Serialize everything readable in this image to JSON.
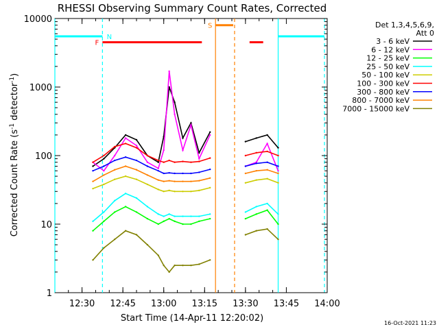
{
  "chart_data": {
    "type": "line",
    "title": "RHESSI Observing Summary Count Rates, Corrected",
    "xlabel": "Start Time (14-Apr-11 12:20:02)",
    "ylabel": "Corrected Count Rate (s⁻¹ detector⁻¹)",
    "ylabel_main": "Corrected Count Rate (s",
    "ylabel_sup1": "-1",
    "ylabel_mid": " detector",
    "ylabel_sup2": "-1",
    "ylabel_end": ")",
    "date_stamp": "16-Oct-2021 11:23",
    "y_scale": "log",
    "xlim": [
      "12:20:02",
      "14:00:00"
    ],
    "ylim": [
      1,
      10000
    ],
    "x_ticks": [
      "12:30",
      "12:45",
      "13:00",
      "13:15",
      "13:30",
      "13:45",
      "14:00"
    ],
    "y_ticks": [
      "1",
      "10",
      "100",
      "1000",
      "10000"
    ],
    "legend_header": [
      "Det 1,3,4,5,6,9,",
      "Att 0"
    ],
    "legend_position": "right",
    "grid": false,
    "series": [
      {
        "name": "3 - 6 keV",
        "color": "#000000",
        "x": [
          "12:34",
          "12:38",
          "12:42",
          "12:46",
          "12:50",
          "12:54",
          "12:58",
          "13:00",
          "13:02",
          "13:04",
          "13:07",
          "13:10",
          "13:13",
          "13:17",
          "13:30",
          "13:34",
          "13:38",
          "13:42"
        ],
        "values": [
          70,
          90,
          130,
          200,
          170,
          100,
          80,
          190,
          1000,
          600,
          180,
          300,
          110,
          220,
          160,
          180,
          200,
          130
        ]
      },
      {
        "name": "6 - 12 keV",
        "color": "#ff00ff",
        "x": [
          "12:34",
          "12:38",
          "12:42",
          "12:46",
          "12:50",
          "12:54",
          "12:58",
          "13:00",
          "13:02",
          "13:04",
          "13:07",
          "13:10",
          "13:13",
          "13:17",
          "13:30",
          "13:34",
          "13:38",
          "13:42"
        ],
        "values": [
          80,
          60,
          100,
          180,
          140,
          80,
          65,
          120,
          1700,
          400,
          120,
          280,
          90,
          200,
          70,
          80,
          150,
          60
        ]
      },
      {
        "name": "12 - 25 keV",
        "color": "#00ff00",
        "x": [
          "12:34",
          "12:38",
          "12:42",
          "12:46",
          "12:50",
          "12:54",
          "12:58",
          "13:00",
          "13:02",
          "13:04",
          "13:07",
          "13:10",
          "13:13",
          "13:17",
          "13:30",
          "13:34",
          "13:38",
          "13:42"
        ],
        "values": [
          8,
          11,
          15,
          18,
          15,
          12,
          10,
          11,
          12,
          11,
          10,
          10,
          11,
          12,
          12,
          14,
          16,
          10
        ]
      },
      {
        "name": "25 - 50 keV",
        "color": "#00ffff",
        "x": [
          "12:34",
          "12:38",
          "12:42",
          "12:46",
          "12:50",
          "12:54",
          "12:58",
          "13:00",
          "13:02",
          "13:04",
          "13:07",
          "13:10",
          "13:13",
          "13:17",
          "13:30",
          "13:34",
          "13:38",
          "13:42"
        ],
        "values": [
          11,
          15,
          22,
          28,
          24,
          18,
          14,
          13,
          14,
          13,
          13,
          13,
          13,
          14,
          15,
          18,
          20,
          14
        ]
      },
      {
        "name": "50 - 100 keV",
        "color": "#cccc00",
        "x": [
          "12:34",
          "12:38",
          "12:42",
          "12:46",
          "12:50",
          "12:54",
          "12:58",
          "13:00",
          "13:02",
          "13:04",
          "13:07",
          "13:10",
          "13:13",
          "13:17",
          "13:30",
          "13:34",
          "13:38",
          "13:42"
        ],
        "values": [
          33,
          38,
          45,
          50,
          45,
          38,
          32,
          30,
          31,
          30,
          30,
          30,
          31,
          34,
          40,
          44,
          46,
          40
        ]
      },
      {
        "name": "100 - 300 keV",
        "color": "#ff0000",
        "x": [
          "12:34",
          "12:38",
          "12:42",
          "12:46",
          "12:50",
          "12:54",
          "12:58",
          "13:00",
          "13:02",
          "13:04",
          "13:07",
          "13:10",
          "13:13",
          "13:17",
          "13:30",
          "13:34",
          "13:38",
          "13:42"
        ],
        "values": [
          80,
          100,
          135,
          150,
          130,
          100,
          85,
          80,
          85,
          80,
          82,
          80,
          82,
          92,
          100,
          110,
          115,
          100
        ]
      },
      {
        "name": "300 - 800 keV",
        "color": "#0000ff",
        "x": [
          "12:34",
          "12:38",
          "12:42",
          "12:46",
          "12:50",
          "12:54",
          "12:58",
          "13:00",
          "13:02",
          "13:04",
          "13:07",
          "13:10",
          "13:13",
          "13:17",
          "13:30",
          "13:34",
          "13:38",
          "13:42"
        ],
        "values": [
          60,
          70,
          85,
          95,
          85,
          70,
          60,
          55,
          56,
          55,
          55,
          55,
          57,
          63,
          70,
          77,
          80,
          70
        ]
      },
      {
        "name": "800 - 7000 keV",
        "color": "#ff8000",
        "x": [
          "12:34",
          "12:38",
          "12:42",
          "12:46",
          "12:50",
          "12:54",
          "12:58",
          "13:00",
          "13:02",
          "13:04",
          "13:07",
          "13:10",
          "13:13",
          "13:17",
          "13:30",
          "13:34",
          "13:38",
          "13:42"
        ],
        "values": [
          42,
          52,
          62,
          70,
          62,
          52,
          44,
          42,
          43,
          42,
          42,
          42,
          43,
          47,
          55,
          60,
          62,
          55
        ]
      },
      {
        "name": "7000 - 15000 keV",
        "color": "#808000",
        "x": [
          "12:34",
          "12:38",
          "12:42",
          "12:46",
          "12:50",
          "12:54",
          "12:58",
          "13:00",
          "13:02",
          "13:04",
          "13:07",
          "13:10",
          "13:13",
          "13:17",
          "13:30",
          "13:34",
          "13:38",
          "13:42"
        ],
        "values": [
          3,
          4.5,
          6,
          8,
          7,
          5,
          3.5,
          2.5,
          2,
          2.5,
          2.5,
          2.5,
          2.6,
          3,
          7,
          8,
          8.5,
          6
        ]
      }
    ],
    "annotations": [
      {
        "label": "N",
        "color": "#00ffff",
        "kind": "night",
        "dashed_at": "12:37:30",
        "segments": [
          [
            "12:20:02",
            "12:37:30"
          ],
          [
            "13:42:00",
            "13:59:00"
          ]
        ],
        "level": 5500,
        "verticals_solid": [
          "12:20:02",
          "13:42:00"
        ],
        "verticals_dashed": [
          "12:37:30",
          "13:59:00"
        ]
      },
      {
        "label": "F",
        "color": "#ff0000",
        "kind": "flare",
        "segments": [
          [
            "12:37:30",
            "13:14:00"
          ],
          [
            "13:31:30",
            "13:36:30"
          ]
        ],
        "level": 4500
      },
      {
        "label": "S",
        "color": "#ff8000",
        "kind": "saa",
        "segments": [
          [
            "13:19:00",
            "13:25:30"
          ]
        ],
        "level": 8000,
        "verticals_solid": [
          "13:19:00"
        ],
        "verticals_dashed": [
          "13:26:00"
        ]
      }
    ]
  }
}
